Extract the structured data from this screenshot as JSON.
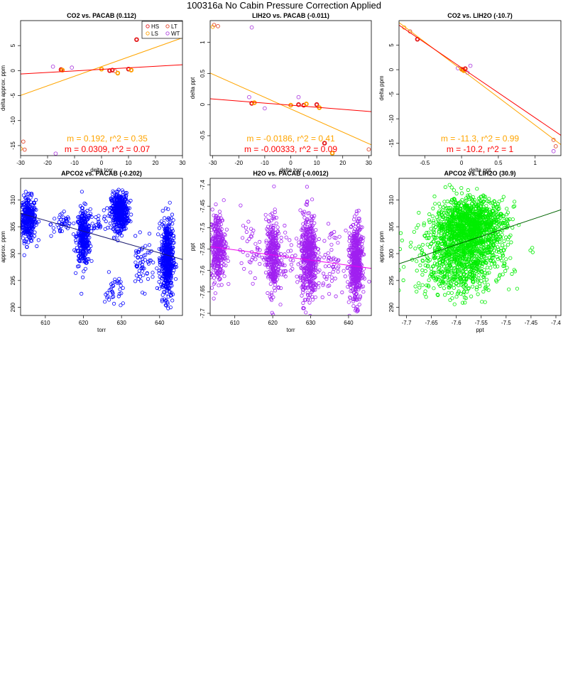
{
  "page": {
    "title": "100316a   No Cabin Pressure Correction Applied"
  },
  "colors": {
    "HS": "#e31a1c",
    "LS": "#ff9f00",
    "LT": "#e0452a",
    "WT": "#b044e0",
    "blue": "#0000ff",
    "purple": "#a020f0",
    "green": "#00ee00",
    "fitA": "#ff0000",
    "fitB": "#ffa500",
    "fitDark": "#1a1a6e",
    "fitGreen": "#006400"
  },
  "chart_data": [
    {
      "id": "p1",
      "type": "scatter",
      "title": "CO2 vs. PACAB (0.112)",
      "xlabel": "delta torr",
      "ylabel": "delta approx. ppm",
      "xlim": [
        -30,
        30
      ],
      "ylim": [
        -17,
        10
      ],
      "xticks": [
        -30,
        -20,
        -10,
        0,
        10,
        20,
        30
      ],
      "yticks": [
        -15,
        -10,
        -5,
        0,
        5
      ],
      "legend": {
        "position": "top-right",
        "entries": [
          {
            "label": "HS",
            "color": "#e31a1c"
          },
          {
            "label": "LT",
            "color": "#e0452a"
          },
          {
            "label": "LS",
            "color": "#ff9f00"
          },
          {
            "label": "WT",
            "color": "#b044e0"
          }
        ]
      },
      "points": [
        {
          "x": -29,
          "y": -14.2,
          "c": "#e0452a"
        },
        {
          "x": -28.5,
          "y": -15.8,
          "c": "#e0452a"
        },
        {
          "x": -30,
          "y": -15.6,
          "c": "#ff9f00"
        },
        {
          "x": -17,
          "y": -16.6,
          "c": "#b044e0"
        },
        {
          "x": -18,
          "y": 0.8,
          "c": "#b044e0"
        },
        {
          "x": -15,
          "y": 0.2,
          "c": "#e31a1c"
        },
        {
          "x": -14.5,
          "y": 0.1,
          "c": "#ff9f00"
        },
        {
          "x": -11,
          "y": 0.6,
          "c": "#b044e0"
        },
        {
          "x": 0,
          "y": 0.3,
          "c": "#ff9f00"
        },
        {
          "x": 3,
          "y": 0,
          "c": "#e31a1c"
        },
        {
          "x": 4,
          "y": 0.1,
          "c": "#e31a1c"
        },
        {
          "x": 5,
          "y": -0.1,
          "c": "#e0452a"
        },
        {
          "x": 6,
          "y": -0.5,
          "c": "#ff9f00"
        },
        {
          "x": 10,
          "y": 0.3,
          "c": "#e31a1c"
        },
        {
          "x": 11,
          "y": 0.1,
          "c": "#ff9f00"
        },
        {
          "x": 13,
          "y": 6.2,
          "c": "#e31a1c"
        }
      ],
      "fits": [
        {
          "m": 0.192,
          "b": 0.8,
          "color": "#ffa500",
          "label": "m = 0.192, r^2 = 0.35"
        },
        {
          "m": 0.0309,
          "b": 0.25,
          "color": "#ff0000",
          "label": "m = 0.0309, r^2 = 0.07"
        }
      ]
    },
    {
      "id": "p2",
      "type": "scatter",
      "title": "LIH2O vs. PACAB (-0.011)",
      "xlabel": "delta torr",
      "ylabel": "delta ppt",
      "xlim": [
        -31,
        31
      ],
      "ylim": [
        -0.82,
        1.35
      ],
      "xticks": [
        -30,
        -20,
        -10,
        0,
        10,
        20,
        30
      ],
      "yticks": [
        -0.5,
        0.0,
        0.5,
        1.0
      ],
      "points": [
        {
          "x": -29.5,
          "y": 1.28,
          "c": "#e0452a"
        },
        {
          "x": -28,
          "y": 1.26,
          "c": "#e0452a"
        },
        {
          "x": -30,
          "y": 1.25,
          "c": "#ff9f00"
        },
        {
          "x": -15,
          "y": 1.24,
          "c": "#b044e0"
        },
        {
          "x": -16,
          "y": 0.12,
          "c": "#b044e0"
        },
        {
          "x": -15,
          "y": 0.02,
          "c": "#e31a1c"
        },
        {
          "x": -14,
          "y": 0.03,
          "c": "#ff9f00"
        },
        {
          "x": -10,
          "y": -0.06,
          "c": "#b044e0"
        },
        {
          "x": 0,
          "y": -0.01,
          "c": "#ff9f00"
        },
        {
          "x": 3,
          "y": 0.12,
          "c": "#b044e0"
        },
        {
          "x": 3,
          "y": 0.0,
          "c": "#e31a1c"
        },
        {
          "x": 5,
          "y": -0.01,
          "c": "#e31a1c"
        },
        {
          "x": 6,
          "y": 0.01,
          "c": "#ff9f00"
        },
        {
          "x": 10,
          "y": 0.0,
          "c": "#e31a1c"
        },
        {
          "x": 11,
          "y": -0.05,
          "c": "#ff9f00"
        },
        {
          "x": 13,
          "y": -0.62,
          "c": "#e31a1c"
        },
        {
          "x": 16,
          "y": -0.78,
          "c": "#ff9f00"
        },
        {
          "x": 30,
          "y": -0.72,
          "c": "#e0452a"
        }
      ],
      "fits": [
        {
          "m": -0.0186,
          "b": -0.07,
          "color": "#ffa500",
          "label": "m = -0.0186, r^2 = 0.41"
        },
        {
          "m": -0.00333,
          "b": -0.01,
          "color": "#ff0000",
          "label": "m = -0.00333, r^2 = 0.09"
        }
      ]
    },
    {
      "id": "p3",
      "type": "scatter",
      "title": "CO2 vs. LIH2O (-10.7)",
      "xlabel": "delta ppt",
      "ylabel": "delta ppm",
      "xlim": [
        -0.85,
        1.35
      ],
      "ylim": [
        -17.5,
        10
      ],
      "xticks": [
        -0.5,
        0.0,
        0.5,
        1.0
      ],
      "yticks": [
        -15,
        -10,
        -5,
        0,
        5
      ],
      "points": [
        {
          "x": -0.78,
          "y": 8.6,
          "c": "#ff9f00"
        },
        {
          "x": -0.7,
          "y": 7.8,
          "c": "#e0452a"
        },
        {
          "x": -0.6,
          "y": 6.2,
          "c": "#e31a1c"
        },
        {
          "x": -0.05,
          "y": 0.3,
          "c": "#b044e0"
        },
        {
          "x": 0.0,
          "y": 0.1,
          "c": "#ff9f00"
        },
        {
          "x": 0.02,
          "y": 0.0,
          "c": "#e31a1c"
        },
        {
          "x": 0.03,
          "y": -0.2,
          "c": "#ff9f00"
        },
        {
          "x": 0.05,
          "y": 0.2,
          "c": "#e31a1c"
        },
        {
          "x": 0.12,
          "y": 0.8,
          "c": "#b044e0"
        },
        {
          "x": 0.08,
          "y": -0.6,
          "c": "#b044e0"
        },
        {
          "x": 1.25,
          "y": -14.3,
          "c": "#e0452a"
        },
        {
          "x": 1.28,
          "y": -15.6,
          "c": "#e0452a"
        },
        {
          "x": 1.25,
          "y": -16.6,
          "c": "#b044e0"
        }
      ],
      "fits": [
        {
          "m": -11.3,
          "b": 0.0,
          "color": "#ffa500",
          "label": "m = -11.3, r^2 = 0.99"
        },
        {
          "m": -10.2,
          "b": 0.4,
          "color": "#ff0000",
          "label": "m = -10.2, r^2 = 1"
        }
      ]
    },
    {
      "id": "p4",
      "type": "scatter",
      "title": "APCO2 vs. PACAB (-0.202)",
      "xlabel": "torr",
      "ylabel": "approx. ppm",
      "xlim": [
        603.5,
        646
      ],
      "ylim": [
        288.5,
        314
      ],
      "xticks": [
        610,
        620,
        630,
        640
      ],
      "yticks": [
        290,
        295,
        300,
        305,
        310
      ],
      "color": "#0000ff",
      "clusters": [
        {
          "cx": 605.5,
          "sx": 1.0,
          "cy": 306.5,
          "sy": 2.0,
          "n": 320
        },
        {
          "cx": 614.5,
          "sx": 1.5,
          "cy": 305.5,
          "sy": 1.2,
          "n": 40
        },
        {
          "cx": 620,
          "sx": 0.9,
          "cy": 303,
          "sy": 2.6,
          "n": 330
        },
        {
          "cx": 624,
          "sx": 1.6,
          "cy": 306,
          "sy": 1.0,
          "n": 30
        },
        {
          "cx": 629.5,
          "sx": 1.1,
          "cy": 307.8,
          "sy": 1.7,
          "n": 450
        },
        {
          "cx": 628,
          "sx": 1.2,
          "cy": 293,
          "sy": 1.6,
          "n": 35
        },
        {
          "cx": 635.5,
          "sx": 1.6,
          "cy": 298,
          "sy": 2.2,
          "n": 60
        },
        {
          "cx": 642,
          "sx": 0.8,
          "cy": 299,
          "sy": 3.6,
          "n": 520
        }
      ],
      "fits": [
        {
          "m": -0.202,
          "b": 429.4,
          "color": "#1a1a6e"
        }
      ]
    },
    {
      "id": "p5",
      "type": "scatter",
      "title": "H2O vs. PACAB (-0.0012)",
      "xlabel": "torr",
      "ylabel": "ppt",
      "xlim": [
        603.5,
        646
      ],
      "ylim": [
        -7.705,
        -7.385
      ],
      "xticks": [
        610,
        620,
        630,
        640
      ],
      "yticks": [
        -7.7,
        -7.65,
        -7.6,
        -7.55,
        -7.5,
        -7.45,
        -7.4
      ],
      "color": "#a020f0",
      "clusters": [
        {
          "cx": 605.5,
          "sx": 1.0,
          "cy": -7.545,
          "sy": 0.04,
          "n": 320
        },
        {
          "cx": 614.5,
          "sx": 1.5,
          "cy": -7.555,
          "sy": 0.03,
          "n": 40
        },
        {
          "cx": 620,
          "sx": 0.9,
          "cy": -7.565,
          "sy": 0.045,
          "n": 330
        },
        {
          "cx": 624,
          "sx": 1.6,
          "cy": -7.56,
          "sy": 0.03,
          "n": 30
        },
        {
          "cx": 629.5,
          "sx": 1.1,
          "cy": -7.57,
          "sy": 0.05,
          "n": 500
        },
        {
          "cx": 635.5,
          "sx": 1.6,
          "cy": -7.58,
          "sy": 0.035,
          "n": 60
        },
        {
          "cx": 642,
          "sx": 0.8,
          "cy": -7.585,
          "sy": 0.045,
          "n": 520
        }
      ],
      "fits": [
        {
          "m": -0.0012,
          "b": -6.82,
          "color": "#ee00ee"
        }
      ]
    },
    {
      "id": "p6",
      "type": "scatter",
      "title": "APCO2 vs. LIH2O (30.9)",
      "xlabel": "ppt",
      "ylabel": "approx. ppm",
      "xlim": [
        -7.715,
        -7.39
      ],
      "ylim": [
        288.5,
        314
      ],
      "xticks": [
        -7.7,
        -7.65,
        -7.6,
        -7.55,
        -7.5,
        -7.45,
        -7.4
      ],
      "yticks": [
        290,
        295,
        300,
        305,
        310
      ],
      "color": "#00ee00",
      "clusters": [
        {
          "cx": -7.57,
          "sx": 0.035,
          "cy": 305.5,
          "sy": 2.4,
          "n": 1100
        },
        {
          "cx": -7.59,
          "sx": 0.04,
          "cy": 300,
          "sy": 3.2,
          "n": 700
        },
        {
          "cx": -7.6,
          "sx": 0.045,
          "cy": 297,
          "sy": 3.0,
          "n": 200
        }
      ],
      "fits": [
        {
          "m": 30.9,
          "b": 536.5,
          "color": "#006400"
        }
      ]
    }
  ]
}
